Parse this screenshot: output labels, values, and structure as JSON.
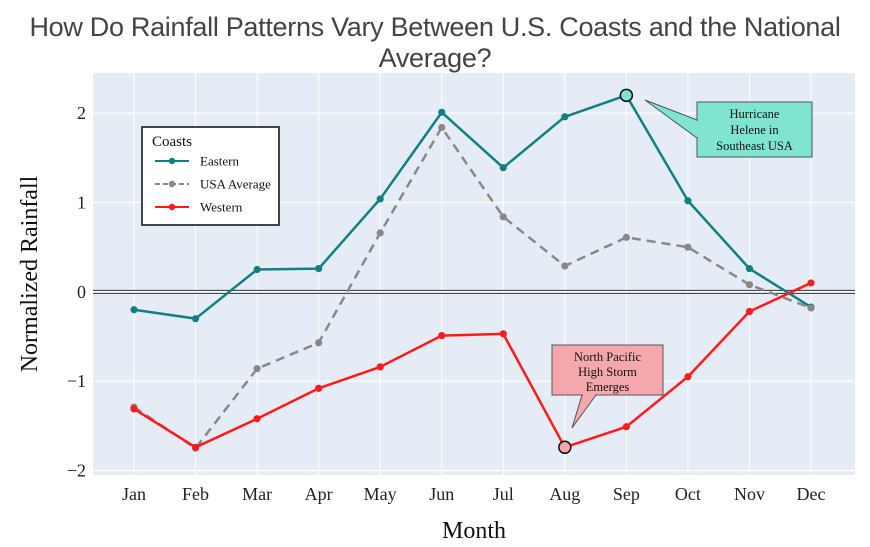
{
  "colors": {
    "plot_bg": "#e5ecf6",
    "grid": "#ffffff",
    "eastern": "#118083",
    "usa": "#888888",
    "western": "#ff1a1a",
    "ann_hurricane_bg": "#7fe5d0",
    "ann_storm_bg": "#f4a8ac"
  },
  "chart_data": {
    "type": "line",
    "title": "How Do Rainfall Patterns Vary Between U.S. Coasts and the National Average?",
    "xlabel": "Month",
    "ylabel": "Normalized Rainfall",
    "categories": [
      "Jan",
      "Feb",
      "Mar",
      "Apr",
      "May",
      "Jun",
      "Jul",
      "Aug",
      "Sep",
      "Oct",
      "Nov",
      "Dec"
    ],
    "ylim": [
      -2.05,
      2.45
    ],
    "yticks": [
      -2,
      -1,
      0,
      1,
      2
    ],
    "ytick_labels": [
      "−2",
      "−1",
      "0",
      "1",
      "2"
    ],
    "legend": {
      "title": "Coasts",
      "position": "top-left"
    },
    "series": [
      {
        "name": "Eastern",
        "style": "solid",
        "color": "#118083",
        "values": [
          -0.2,
          -0.3,
          0.25,
          0.26,
          1.04,
          2.01,
          1.39,
          1.96,
          2.2,
          1.02,
          0.26,
          -0.17
        ]
      },
      {
        "name": "USA Average",
        "style": "dashed",
        "color": "#888888",
        "values": [
          -1.29,
          -1.75,
          -0.86,
          -0.57,
          0.66,
          1.84,
          0.84,
          0.29,
          0.61,
          0.5,
          0.08,
          -0.18
        ]
      },
      {
        "name": "Western",
        "style": "solid",
        "color": "#ff1a1a",
        "values": [
          -1.31,
          -1.74,
          -1.42,
          -1.08,
          -0.84,
          -0.49,
          -0.47,
          -1.74,
          -1.51,
          -0.95,
          -0.22,
          0.1
        ]
      }
    ],
    "annotations": [
      {
        "lines": [
          "Hurricane",
          "Helene in",
          "Southeast USA"
        ],
        "series": "Eastern",
        "month": "Sep",
        "value": 2.2
      },
      {
        "lines": [
          "North Pacific",
          "High Storm",
          "Emerges"
        ],
        "series": "Western",
        "month": "Aug",
        "value": -1.74
      }
    ]
  }
}
